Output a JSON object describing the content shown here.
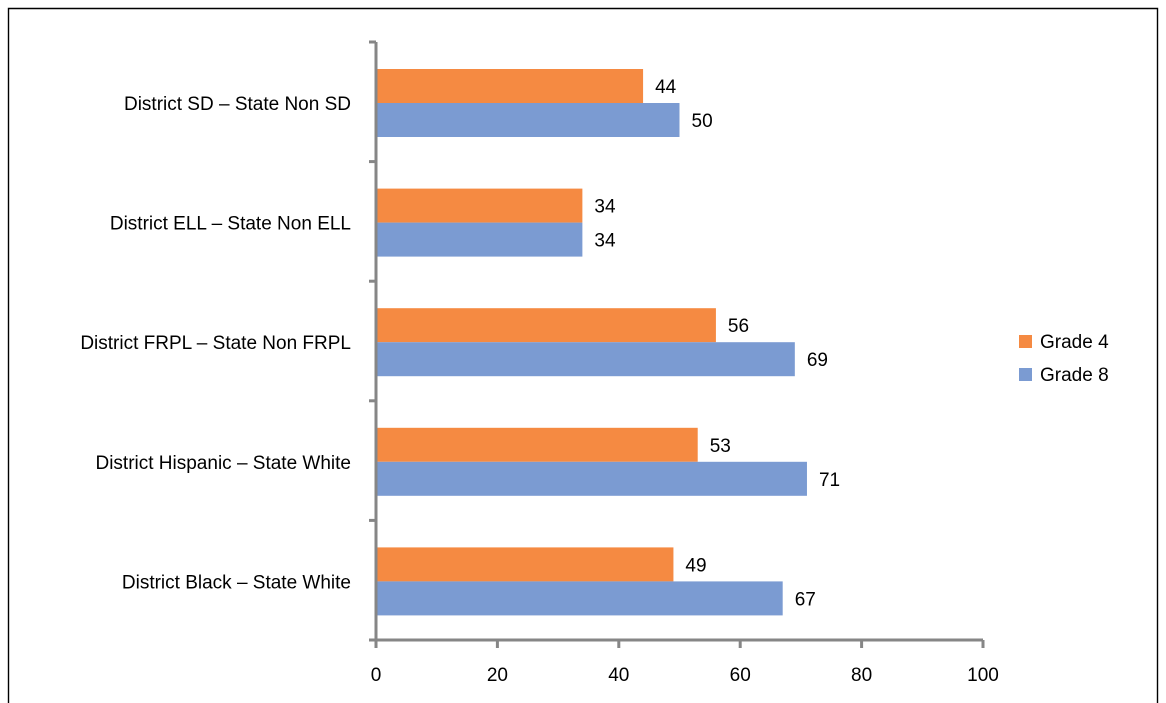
{
  "chart_data": {
    "type": "bar",
    "orientation": "horizontal",
    "title": "",
    "xlabel": "",
    "ylabel": "",
    "categories": [
      "District SD – State Non SD",
      "District ELL – State Non ELL",
      "District FRPL – State Non FRPL",
      "District Hispanic – State White",
      "District Black – State White"
    ],
    "series": [
      {
        "name": "Grade 4",
        "color": "#F58A42",
        "values": [
          44,
          34,
          56,
          53,
          49
        ]
      },
      {
        "name": "Grade 8",
        "color": "#7B9BD2",
        "values": [
          50,
          34,
          69,
          71,
          67
        ]
      }
    ],
    "xlim": [
      0,
      100
    ],
    "xticks": [
      0,
      20,
      40,
      60,
      80,
      100
    ],
    "xtick_labels": [
      "0",
      "20",
      "40",
      "60",
      "80",
      "100"
    ],
    "grid": false,
    "legend_position": "right",
    "data_labels": true,
    "axis_color": "#868686",
    "frame_color": "#000000"
  }
}
